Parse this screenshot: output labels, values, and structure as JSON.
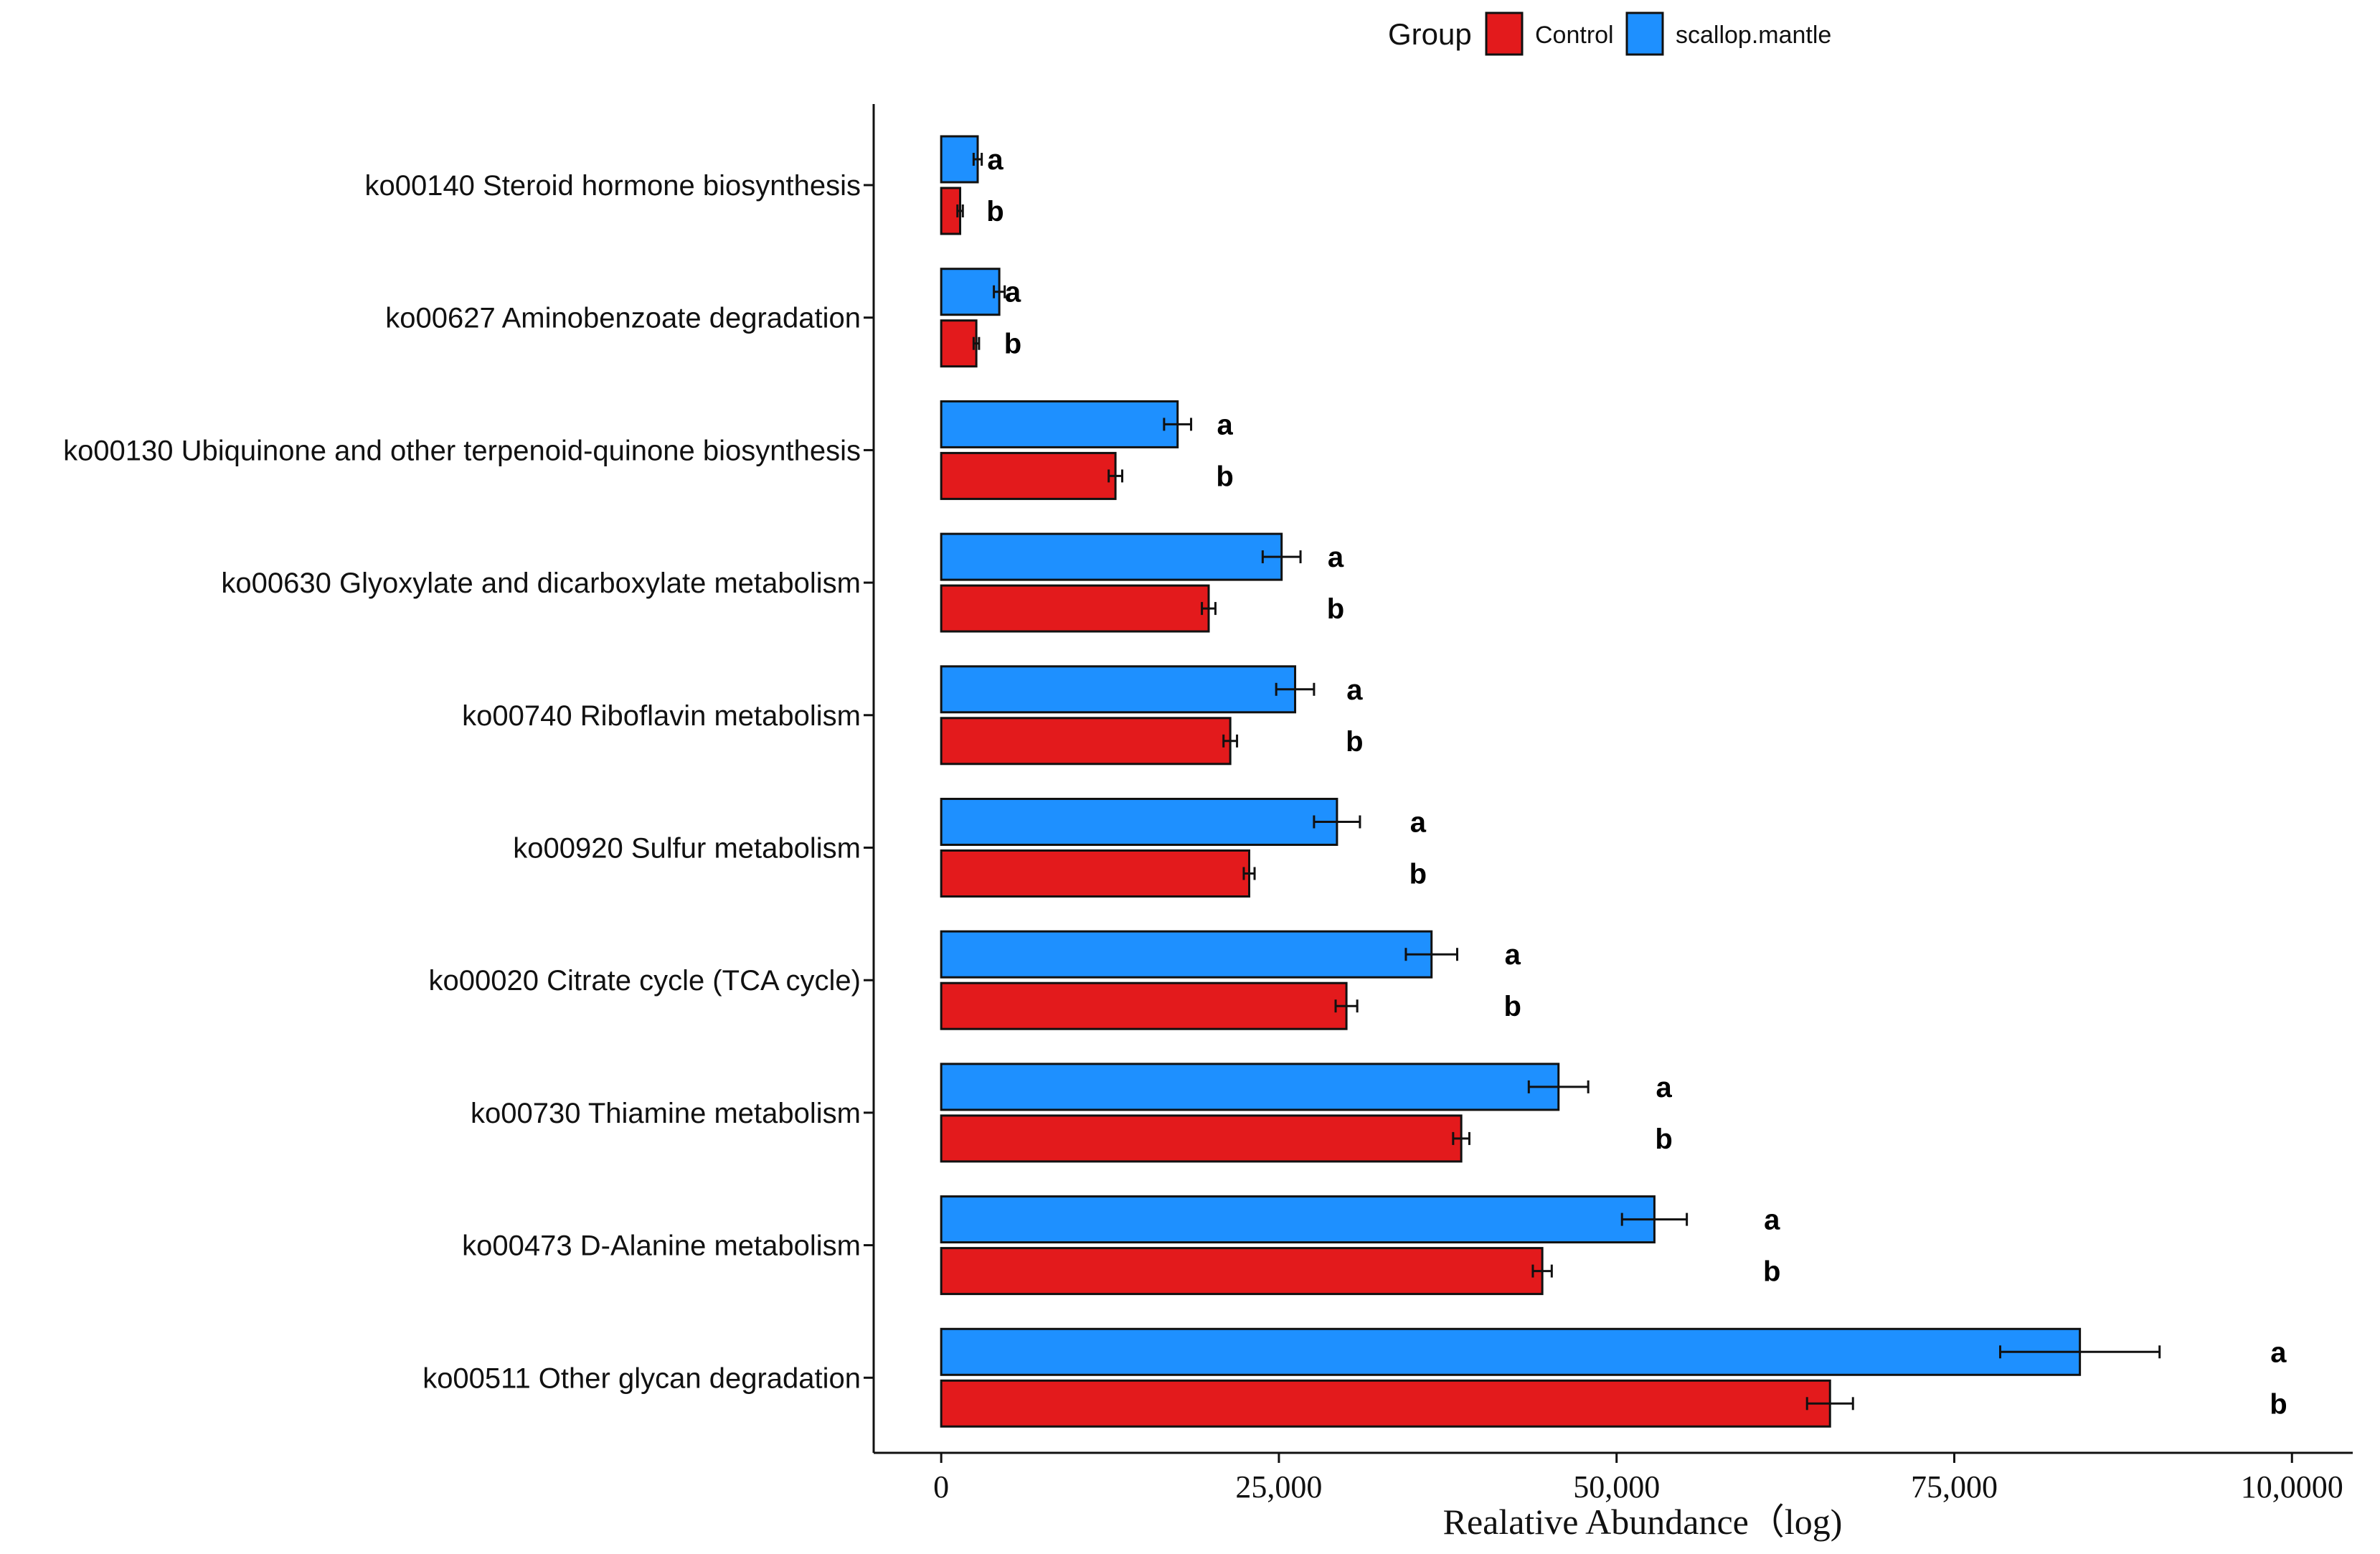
{
  "chart_data": {
    "type": "bar",
    "orientation": "horizontal",
    "categories": [
      "ko00140 Steroid hormone biosynthesis",
      "ko00627 Aminobenzoate degradation",
      "ko00130 Ubiquinone and other terpenoid-quinone biosynthesis",
      "ko00630 Glyoxylate and dicarboxylate metabolism",
      "ko00740 Riboflavin metabolism",
      "ko00920 Sulfur metabolism",
      "ko00020 Citrate cycle (TCA cycle)",
      "ko00730 Thiamine metabolism",
      "ko00473 D-Alanine metabolism",
      "ko00511 Other glycan degradation"
    ],
    "series": [
      {
        "name": "scallop.mantle",
        "color": "#1e90ff",
        "values": [
          2700,
          4300,
          17500,
          25200,
          26200,
          29300,
          36300,
          45700,
          52800,
          84300
        ],
        "errors": [
          300,
          400,
          1000,
          1400,
          1400,
          1700,
          1900,
          2200,
          2400,
          5900
        ],
        "significance": [
          "a",
          "a",
          "a",
          "a",
          "a",
          "a",
          "a",
          "a",
          "a",
          "a"
        ],
        "sig_x": [
          4000,
          5300,
          21000,
          29200,
          30600,
          35300,
          42300,
          53500,
          61500,
          99000
        ]
      },
      {
        "name": "Control",
        "color": "#e31a1c",
        "values": [
          1400,
          2600,
          12900,
          19800,
          21400,
          22800,
          30000,
          38500,
          44500,
          65800
        ],
        "errors": [
          200,
          200,
          500,
          500,
          500,
          400,
          800,
          600,
          700,
          1700
        ],
        "significance": [
          "b",
          "b",
          "b",
          "b",
          "b",
          "b",
          "b",
          "b",
          "b",
          "b"
        ],
        "sig_x": [
          4000,
          5300,
          21000,
          29200,
          30600,
          35300,
          42300,
          53500,
          61500,
          99000
        ]
      }
    ],
    "xlabel": "Realative Abundance（log)",
    "xlim": [
      -5000,
      104500
    ],
    "xticks": [
      0,
      25000,
      50000,
      75000,
      100000
    ],
    "xtick_labels": [
      "0",
      "25,000",
      "50,000",
      "75,000",
      "10,0000"
    ],
    "legend": {
      "title": "Group",
      "placement": "top",
      "entries": [
        "Control",
        "scallop.mantle"
      ]
    },
    "grid": false
  }
}
